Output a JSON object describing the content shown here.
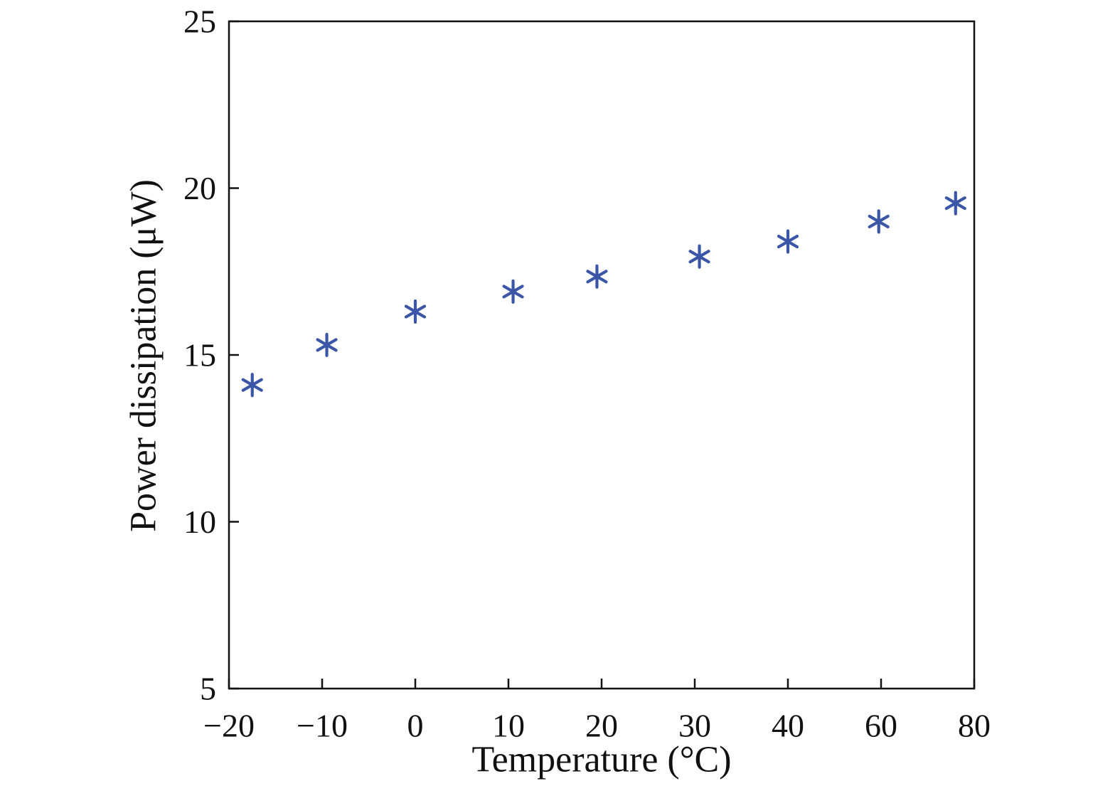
{
  "figure": {
    "background": "#ffffff",
    "axis_color": "#111111",
    "marker_color": "#3b56a6"
  },
  "chart_data": {
    "type": "scatter",
    "title": "",
    "xlabel": "Temperature (°C)",
    "ylabel": "Power dissipation (μW)",
    "marker": "asterisk",
    "legend": "none",
    "grid": "off",
    "x_ticks": [
      -20,
      -10,
      0,
      10,
      20,
      30,
      40,
      60,
      80
    ],
    "x_tick_labels": [
      "−20",
      "−10",
      "0",
      "10",
      "20",
      "30",
      "40",
      "60",
      "80"
    ],
    "x_axis_note": "ticks are equally spaced on screen although values step 10 then 20",
    "y_ticks": [
      5,
      10,
      15,
      20,
      25
    ],
    "y_tick_labels": [
      "5",
      "10",
      "15",
      "20",
      "25"
    ],
    "y_lim": [
      5,
      25
    ],
    "points": [
      [
        -17.5,
        14.1
      ],
      [
        -9.5,
        15.3
      ],
      [
        0,
        16.3
      ],
      [
        10.5,
        16.9
      ],
      [
        19.5,
        17.35
      ],
      [
        30.5,
        17.95
      ],
      [
        40,
        18.4
      ],
      [
        59.5,
        19.0
      ],
      [
        76,
        19.55
      ]
    ]
  }
}
